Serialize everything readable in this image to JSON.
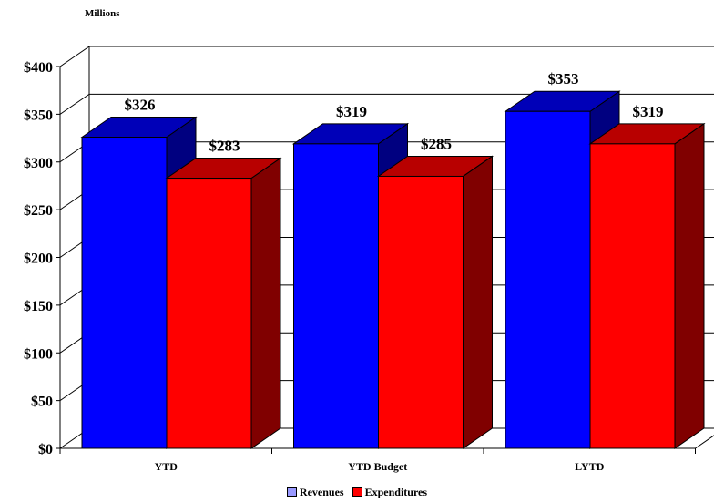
{
  "chart_data": {
    "type": "bar",
    "title": "",
    "unit_label": "Millions",
    "categories": [
      "YTD",
      "YTD Budget",
      "LYTD"
    ],
    "series": [
      {
        "name": "Revenues",
        "values": [
          326,
          319,
          353
        ],
        "value_labels": [
          "$326",
          "$319",
          "$353"
        ],
        "color": "#0000ff"
      },
      {
        "name": "Expenditures",
        "values": [
          283,
          285,
          319
        ],
        "value_labels": [
          "$283",
          "$285",
          "$319"
        ],
        "color": "#ff0000"
      }
    ],
    "ylim": [
      0,
      400
    ],
    "yticks": [
      0,
      50,
      100,
      150,
      200,
      250,
      300,
      350,
      400
    ],
    "ytick_labels": [
      "$0",
      "$50",
      "$100",
      "$150",
      "$200",
      "$250",
      "$300",
      "$350",
      "$400"
    ],
    "grid": true,
    "legend_position": "bottom",
    "legend_swatch_colors": [
      "#9999ff",
      "#ff0000"
    ],
    "style": "3d-clustered-bar"
  }
}
